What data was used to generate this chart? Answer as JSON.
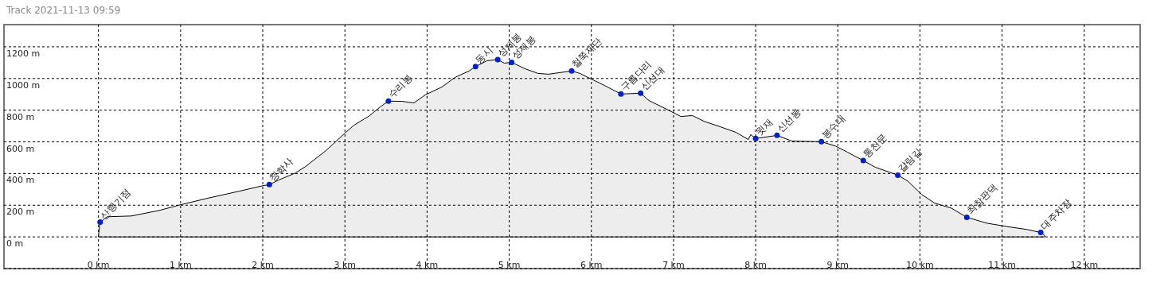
{
  "chart_data": {
    "type": "area",
    "title": "Track 2021-11-13 09:59",
    "xlim": [
      -1.15,
      12.68
    ],
    "xticks": [
      {
        "value": 0,
        "label": "0 km"
      },
      {
        "value": 1,
        "label": "1 km"
      },
      {
        "value": 2,
        "label": "2 km"
      },
      {
        "value": 3,
        "label": "3 km"
      },
      {
        "value": 4,
        "label": "4 km"
      },
      {
        "value": 5,
        "label": "5 km"
      },
      {
        "value": 6,
        "label": "6 km"
      },
      {
        "value": 7,
        "label": "7 km"
      },
      {
        "value": 8,
        "label": "8 km"
      },
      {
        "value": 9,
        "label": "9 km"
      },
      {
        "value": 10,
        "label": "10 km"
      },
      {
        "value": 11,
        "label": "11 km"
      },
      {
        "value": 12,
        "label": "12 km"
      }
    ],
    "ylim": [
      -200,
      1340
    ],
    "yticks": [
      {
        "value": -200,
        "label": null
      },
      {
        "value": 0,
        "label": "0 m"
      },
      {
        "value": 200,
        "label": "200 m"
      },
      {
        "value": 400,
        "label": "400 m"
      },
      {
        "value": 600,
        "label": "600 m"
      },
      {
        "value": 800,
        "label": "800 m"
      },
      {
        "value": 1000,
        "label": "1000 m"
      },
      {
        "value": 1200,
        "label": "1200 m"
      }
    ],
    "grid": true,
    "series": [
      {
        "color": "#000000",
        "x": [
          0,
          0.02,
          0.107,
          0.4,
          0.74,
          1.0,
          1.32,
          1.71,
          2.0,
          2.08,
          2.19,
          2.4,
          2.52,
          2.77,
          3.0,
          3.11,
          3.3,
          3.43,
          3.53,
          3.69,
          3.84,
          3.98,
          4.18,
          4.34,
          4.51,
          4.59,
          4.73,
          4.81,
          4.86,
          4.94,
          5.03,
          5.19,
          5.35,
          5.48,
          5.76,
          5.86,
          6.16,
          6.36,
          6.6,
          6.7,
          6.94,
          7.09,
          7.23,
          7.37,
          7.57,
          7.76,
          7.91,
          7.94,
          8.0,
          8.26,
          8.44,
          8.8,
          8.97,
          9.12,
          9.21,
          9.31,
          9.46,
          9.73,
          9.85,
          10.02,
          10.18,
          10.38,
          10.57,
          10.81,
          11.1,
          11.3,
          11.47,
          11.52
        ],
        "values": [
          8,
          93,
          127,
          132,
          167,
          203,
          243,
          288,
          323,
          330,
          358,
          404,
          444,
          545,
          655,
          705,
          765,
          821,
          857,
          856,
          846,
          897,
          946,
          1007,
          1047,
          1075,
          1112,
          1117,
          1119,
          1097,
          1102,
          1062,
          1032,
          1027,
          1048,
          1032,
          956,
          902,
          907,
          861,
          800,
          760,
          766,
          730,
          695,
          660,
          615,
          646,
          621,
          641,
          605,
          601,
          574,
          534,
          509,
          482,
          439,
          390,
          353,
          268,
          213,
          182,
          124,
          87,
          62,
          47,
          28,
          8
        ]
      },
      {
        "type": "scatter",
        "color": "#0022cc",
        "marker": "circle",
        "x": [
          0.02,
          2.08,
          3.53,
          4.59,
          4.86,
          5.03,
          5.76,
          6.36,
          6.6,
          8.0,
          8.26,
          8.8,
          9.31,
          9.73,
          10.57,
          11.47
        ],
        "values": [
          93,
          330,
          857,
          1075,
          1119,
          1102,
          1048,
          902,
          907,
          621,
          641,
          601,
          482,
          390,
          124,
          28
        ]
      }
    ],
    "annotations": [
      {
        "text": "산행기점",
        "x": 0.02,
        "y": 93
      },
      {
        "text": "청학사",
        "x": 2.08,
        "y": 330
      },
      {
        "text": "수리봉",
        "x": 3.53,
        "y": 857
      },
      {
        "text": "동시",
        "x": 4.59,
        "y": 1075
      },
      {
        "text": "성제봉",
        "x": 4.86,
        "y": 1119
      },
      {
        "text": "성제봉",
        "x": 5.03,
        "y": 1102
      },
      {
        "text": "철쭉제단",
        "x": 5.76,
        "y": 1048
      },
      {
        "text": "구름다리",
        "x": 6.36,
        "y": 902
      },
      {
        "text": "신선대",
        "x": 6.6,
        "y": 907
      },
      {
        "text": "윗재",
        "x": 8.0,
        "y": 621
      },
      {
        "text": "신선봉",
        "x": 8.26,
        "y": 641
      },
      {
        "text": "봉수대",
        "x": 8.8,
        "y": 601
      },
      {
        "text": "통천문",
        "x": 9.31,
        "y": 482
      },
      {
        "text": "갈림길",
        "x": 9.73,
        "y": 390
      },
      {
        "text": "최참판댁",
        "x": 10.57,
        "y": 124
      },
      {
        "text": "대주차장",
        "x": 11.47,
        "y": 28
      }
    ]
  }
}
